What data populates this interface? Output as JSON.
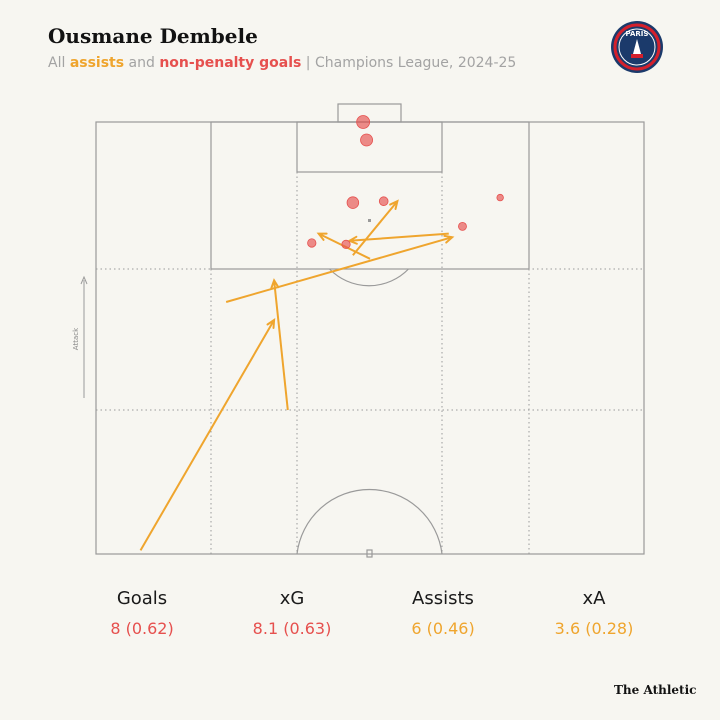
{
  "header": {
    "title": "Ousmane Dembele",
    "subtitle_all": "All ",
    "subtitle_assists": "assists",
    "subtitle_and": " and ",
    "subtitle_goals": "non-penalty goals",
    "subtitle_rest": " | Champions League, 2024-25"
  },
  "logo": {
    "text": "PARIS",
    "icon": "psg-crest-icon"
  },
  "pitch": {
    "attack_label": "Attack"
  },
  "colors": {
    "assist": "#efa52e",
    "goal": "#e6504e",
    "lines": "#9a9a9a"
  },
  "chart_data": {
    "type": "scatter",
    "title": "Ousmane Dembele",
    "coordinate_system": "StatsBomb pitch (x 0-80 across width, y 0-60 from halfway line to opponent goal)",
    "goals": [
      {
        "x": 39.0,
        "y": 60.0,
        "xg": 0.25
      },
      {
        "x": 39.5,
        "y": 57.5,
        "xg": 0.2
      },
      {
        "x": 37.5,
        "y": 48.8,
        "xg": 0.18
      },
      {
        "x": 42.0,
        "y": 49.0,
        "xg": 0.07
      },
      {
        "x": 53.5,
        "y": 45.5,
        "xg": 0.05
      },
      {
        "x": 59.0,
        "y": 49.5,
        "xg": 0.02
      },
      {
        "x": 36.5,
        "y": 43.0,
        "xg": 0.06
      },
      {
        "x": 31.5,
        "y": 43.2,
        "xg": 0.06
      }
    ],
    "assists": [
      {
        "x1": 6.5,
        "y1": 0.5,
        "x2": 26.0,
        "y2": 32.5
      },
      {
        "x1": 28.0,
        "y1": 20.0,
        "x2": 26.0,
        "y2": 38.0
      },
      {
        "x1": 19.0,
        "y1": 35.0,
        "x2": 52.0,
        "y2": 44.0
      },
      {
        "x1": 40.0,
        "y1": 41.0,
        "x2": 32.5,
        "y2": 44.5
      },
      {
        "x1": 51.5,
        "y1": 44.5,
        "x2": 37.0,
        "y2": 43.5
      },
      {
        "x1": 37.5,
        "y1": 41.5,
        "x2": 44.0,
        "y2": 49.0
      }
    ]
  },
  "stats": [
    {
      "label": "Goals",
      "value": "8 (0.62)",
      "color": "#e6504e"
    },
    {
      "label": "xG",
      "value": "8.1 (0.63)",
      "color": "#e6504e"
    },
    {
      "label": "Assists",
      "value": "6 (0.46)",
      "color": "#efa52e"
    },
    {
      "label": "xA",
      "value": "3.6 (0.28)",
      "color": "#efa52e"
    }
  ],
  "footer": {
    "credit": "The Athletic"
  }
}
